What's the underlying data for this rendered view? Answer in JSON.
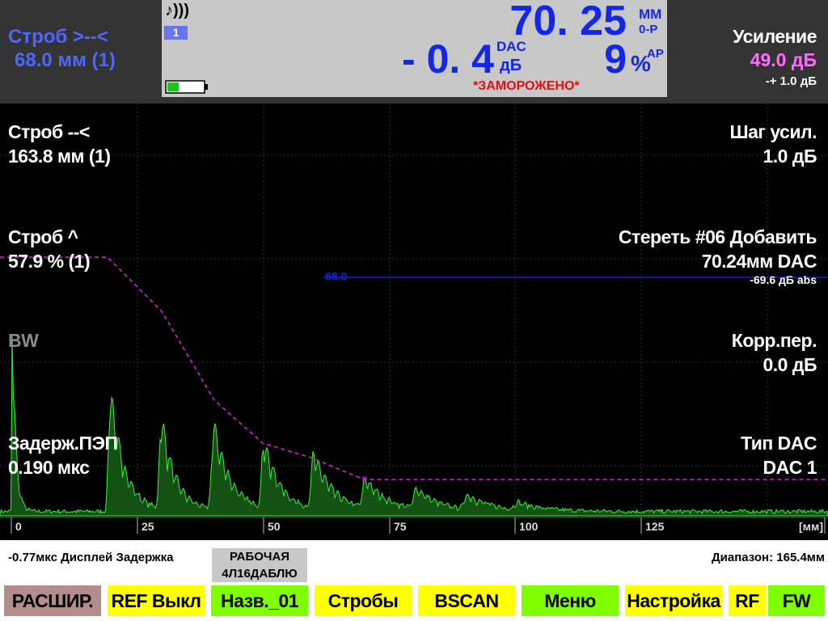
{
  "top_left": {
    "gate_label": "Строб >--<",
    "gate_value": "68.0 мм (1)"
  },
  "status": {
    "sound_icon": "♪)))",
    "channel": "1",
    "depth_value": "70. 25",
    "depth_unit": "ММ",
    "depth_mode": "0-P",
    "dac_value": "- 0. 4",
    "dac_label": "DAC",
    "dac_unit": "дБ",
    "amp_value": "9",
    "amp_unit": "%",
    "amp_mode": "AP",
    "frozen": "*ЗАМОРОЖЕНО*"
  },
  "gain": {
    "label": "Усиление",
    "value": "49.0 дБ",
    "step": "-+ 1.0 дБ"
  },
  "left_params": [
    {
      "label": "Строб --<",
      "value": "163.8 мм (1)"
    },
    {
      "label": "Строб ^",
      "value": "57.9 % (1)"
    },
    {
      "label": "BW"
    },
    {
      "label": "Задерж.ПЭП",
      "value": "0.190 мкс"
    }
  ],
  "right_params": [
    {
      "label": "Шаг усил.",
      "value": "1.0 дБ"
    },
    {
      "label": "Стереть #06 Добавить",
      "value": "70.24мм DAC",
      "extra": "-69.6 дБ abs"
    },
    {
      "label": "Корр.пер.",
      "value": "0.0 дБ"
    },
    {
      "label": "Тип DAC",
      "value": "DAC 1"
    }
  ],
  "gate_marker": "68.0",
  "axis": {
    "ticks": [
      "0",
      "25",
      "50",
      "75",
      "100",
      "125"
    ],
    "unit": "[мм]"
  },
  "footer": {
    "delay": "-0.77мкс  Дисплей Задержка",
    "mode": "РАБОЧАЯ",
    "probe": "4Л16ДАБЛЮ",
    "range": "Диапазон: 165.4мм"
  },
  "buttons": [
    "РАСШИР.",
    "REF Выкл",
    "Назв._01",
    "Стробы",
    "BSCAN",
    "Меню",
    "Настройка",
    "RF",
    "FW"
  ]
}
